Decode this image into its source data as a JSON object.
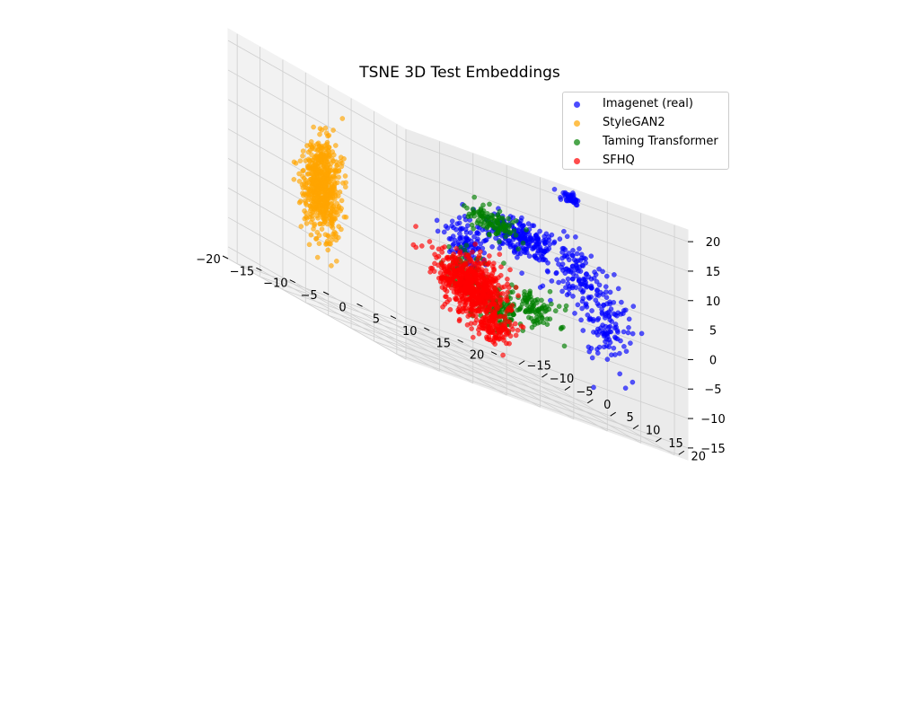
{
  "chart_data": {
    "type": "scatter",
    "title": "TSNE 3D Test Embeddings",
    "projection": "3d",
    "grid": true,
    "legend_position": "top-right",
    "xlim": [
      -20,
      22
    ],
    "ylim": [
      -17,
      22
    ],
    "zlim": [
      -17,
      22
    ],
    "x_ticks": [
      -20,
      -15,
      -10,
      -5,
      0,
      5,
      10,
      15,
      20
    ],
    "y_ticks": [
      -15,
      -10,
      -5,
      0,
      5,
      10,
      15,
      20
    ],
    "z_ticks": [
      -15,
      -10,
      -5,
      0,
      5,
      10,
      15,
      20
    ],
    "x_tick_labels": [
      "−20",
      "−15",
      "−10",
      "−5",
      "0",
      "5",
      "10",
      "15",
      "20"
    ],
    "y_tick_labels": [
      "−15",
      "−10",
      "−5",
      "0",
      "5",
      "10",
      "15",
      "20"
    ],
    "z_tick_labels": [
      "−15",
      "−10",
      "−5",
      "0",
      "5",
      "10",
      "15",
      "20"
    ],
    "series": [
      {
        "name": "Imagenet (real)",
        "color": "#0000ff",
        "clusters": [
          {
            "center": [
              8,
              6,
              8
            ],
            "spread": [
              5,
              3,
              3
            ],
            "count": 230
          },
          {
            "center": [
              12,
              12,
              6
            ],
            "spread": [
              3,
              5,
              5
            ],
            "count": 120
          },
          {
            "center": [
              18,
              10,
              -1
            ],
            "spread": [
              2,
              5,
              6
            ],
            "count": 120
          },
          {
            "center": [
              14,
              8,
              18
            ],
            "spread": [
              1,
              2,
              1
            ],
            "count": 40
          },
          {
            "center": [
              2,
              3,
              3
            ],
            "spread": [
              3,
              2,
              4
            ],
            "count": 110
          }
        ]
      },
      {
        "name": "StyleGAN2",
        "color": "#ffa500",
        "clusters": [
          {
            "center": [
              -6,
              -17,
              1
            ],
            "spread": [
              2.5,
              2,
              8
            ],
            "count": 600
          }
        ]
      },
      {
        "name": "Taming Transformer",
        "color": "#008000",
        "clusters": [
          {
            "center": [
              3,
              7,
              9
            ],
            "spread": [
              4,
              2,
              2
            ],
            "count": 110
          },
          {
            "center": [
              6,
              4,
              -6
            ],
            "spread": [
              3,
              3,
              3
            ],
            "count": 120
          },
          {
            "center": [
              10,
              6,
              -3
            ],
            "spread": [
              4,
              2,
              3
            ],
            "count": 100
          },
          {
            "center": [
              4,
              0,
              -3
            ],
            "spread": [
              3,
              3,
              4
            ],
            "count": 80
          }
        ]
      },
      {
        "name": "SFHQ",
        "color": "#ff0000",
        "clusters": [
          {
            "center": [
              4,
              1,
              -4
            ],
            "spread": [
              4.5,
              3.5,
              5
            ],
            "count": 650
          },
          {
            "center": [
              9,
              -1,
              -10
            ],
            "spread": [
              3,
              2,
              2.5
            ],
            "count": 120
          }
        ]
      }
    ]
  }
}
